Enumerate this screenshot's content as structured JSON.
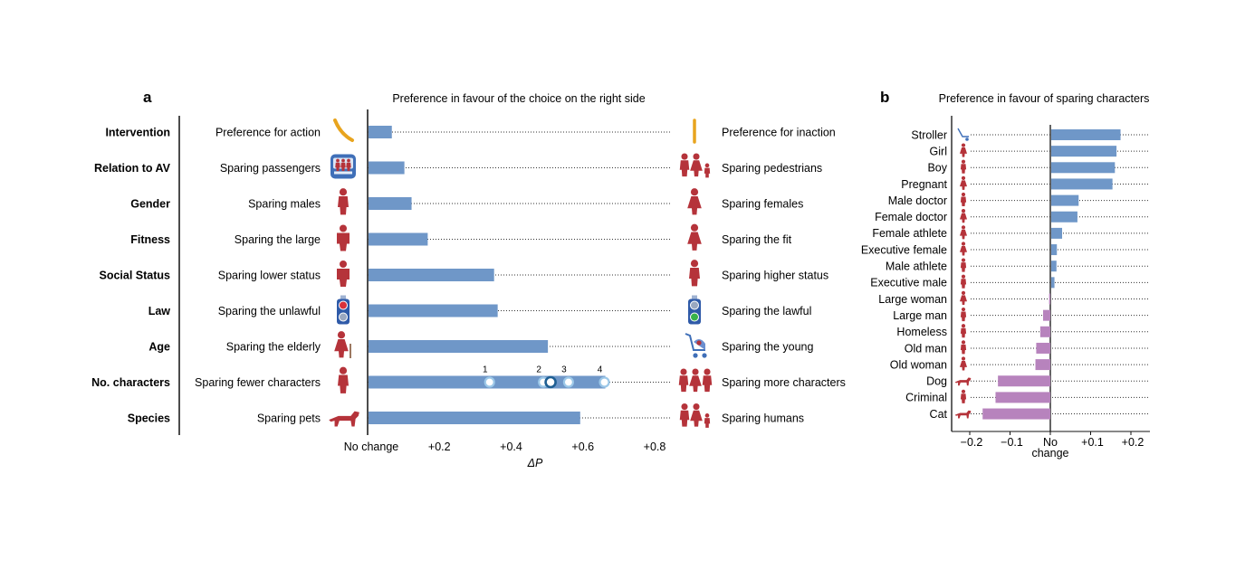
{
  "chart_data": [
    {
      "panel": "a",
      "type": "bar",
      "title": "Preference in favour of the choice on the right side",
      "xlabel": "ΔP",
      "xlim": [
        0,
        0.9
      ],
      "xticks": [
        {
          "value": 0,
          "label": "No change"
        },
        {
          "value": 0.2,
          "label": "+0.2"
        },
        {
          "value": 0.4,
          "label": "+0.4"
        },
        {
          "value": 0.6,
          "label": "+0.6"
        },
        {
          "value": 0.8,
          "label": "+0.8"
        }
      ],
      "bar_color": "#6f97c8",
      "icon_color": "#b5333a",
      "rows": [
        {
          "category": "Intervention",
          "left": "Preference for action",
          "right": "Preference for inaction",
          "value": 0.065,
          "left_icon": "action-arrow-icon",
          "right_icon": "inaction-arrow-icon"
        },
        {
          "category": "Relation to AV",
          "left": "Sparing passengers",
          "right": "Sparing pedestrians",
          "value": 0.1,
          "left_icon": "car-passengers-icon",
          "right_icon": "pedestrians-icon"
        },
        {
          "category": "Gender",
          "left": "Sparing males",
          "right": "Sparing females",
          "value": 0.12,
          "left_icon": "male-icon",
          "right_icon": "female-icon"
        },
        {
          "category": "Fitness",
          "left": "Sparing the large",
          "right": "Sparing the fit",
          "value": 0.165,
          "left_icon": "large-person-icon",
          "right_icon": "fit-person-icon"
        },
        {
          "category": "Social Status",
          "left": "Sparing lower status",
          "right": "Sparing higher status",
          "value": 0.35,
          "left_icon": "homeless-icon",
          "right_icon": "executive-icon"
        },
        {
          "category": "Law",
          "left": "Sparing the unlawful",
          "right": "Sparing the lawful",
          "value": 0.36,
          "left_icon": "red-light-icon",
          "right_icon": "green-light-icon"
        },
        {
          "category": "Age",
          "left": "Sparing the elderly",
          "right": "Sparing the young",
          "value": 0.5,
          "left_icon": "elderly-icon",
          "right_icon": "stroller-icon"
        },
        {
          "category": "No. characters",
          "left": "Sparing fewer characters",
          "right": "Sparing more characters",
          "value": 0.66,
          "left_icon": "single-person-icon",
          "right_icon": "group-icon"
        },
        {
          "category": "Species",
          "left": "Sparing pets",
          "right": "Sparing humans",
          "value": 0.59,
          "left_icon": "dog-icon",
          "right_icon": "humans-icon"
        }
      ],
      "character_markers": [
        {
          "label": "1",
          "value": 0.34
        },
        {
          "label": "2",
          "value": 0.49
        },
        {
          "label": "3",
          "value": 0.56
        },
        {
          "label": "4",
          "value": 0.66
        }
      ],
      "character_mean": 0.51
    },
    {
      "panel": "b",
      "type": "bar",
      "title": "Preference in favour of sparing characters",
      "xlabel": "",
      "xlim": [
        -0.23,
        0.24
      ],
      "xticks": [
        {
          "value": -0.2,
          "label": "−0.2"
        },
        {
          "value": -0.1,
          "label": "−0.1"
        },
        {
          "value": 0,
          "label": "No change"
        },
        {
          "value": 0.1,
          "label": "+0.1"
        },
        {
          "value": 0.2,
          "label": "+0.2"
        }
      ],
      "positive_color": "#6f97c8",
      "negative_color": "#b783bd",
      "categories": [
        "Stroller",
        "Girl",
        "Boy",
        "Pregnant",
        "Male doctor",
        "Female doctor",
        "Female athlete",
        "Executive female",
        "Male athlete",
        "Executive male",
        "Large woman",
        "Large man",
        "Homeless",
        "Old man",
        "Old woman",
        "Dog",
        "Criminal",
        "Cat"
      ],
      "values": [
        0.172,
        0.162,
        0.158,
        0.152,
        0.068,
        0.065,
        0.027,
        0.014,
        0.013,
        0.008,
        -0.003,
        -0.018,
        -0.025,
        -0.035,
        -0.037,
        -0.13,
        -0.136,
        -0.168
      ]
    }
  ]
}
